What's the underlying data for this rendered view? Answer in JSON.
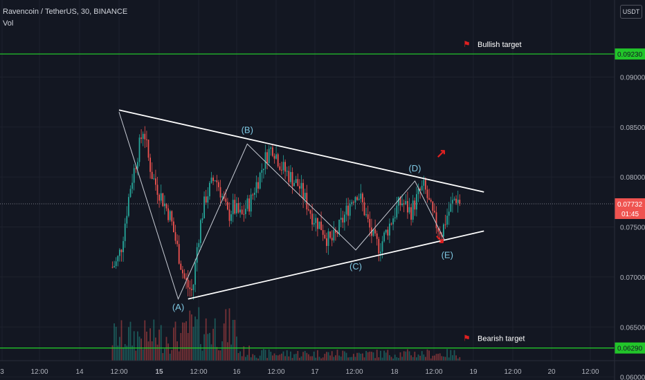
{
  "header": {
    "symbol_line": "Ravencoin / TetherUS, 30, BINANCE",
    "volume_label": "Vol",
    "currency_button": "USDT"
  },
  "colors": {
    "background": "#131722",
    "up": "#26a69a",
    "down": "#ef5350",
    "target_line": "#22c52a",
    "wave_line": "#c9cdd6",
    "triangle_line": "#ffffff",
    "wave_label": "#7ec8e3",
    "arrow": "#e02020",
    "price_tag": "#ef5350"
  },
  "chart_data": {
    "type": "candlestick",
    "symbol": "Ravencoin / TetherUS",
    "interval": "30",
    "exchange": "BINANCE",
    "x_ticks": [
      "3",
      "12:00",
      "14",
      "12:00",
      "15",
      "12:00",
      "16",
      "12:00",
      "17",
      "12:00",
      "18",
      "12:00",
      "19",
      "12:00",
      "20",
      "12:00"
    ],
    "y_ticks": [
      "0.06000",
      "0.06500",
      "0.07000",
      "0.07500",
      "0.08000",
      "0.08500",
      "0.09000"
    ],
    "ylim": [
      0.0597,
      0.0977
    ],
    "last_price": "0.07732",
    "countdown": "01:45",
    "targets": [
      {
        "label": "Bullish target",
        "value": 0.0923,
        "tag": "0.09230"
      },
      {
        "label": "Bearish target",
        "value": 0.0629,
        "tag": "0.06290"
      }
    ],
    "wave_points": [
      {
        "label": "",
        "time": "14 12:00",
        "value": 0.0865
      },
      {
        "label": "(A)",
        "time": "15 06:00",
        "value": 0.0678
      },
      {
        "label": "(B)",
        "time": "16 03:00",
        "value": 0.0833
      },
      {
        "label": "(C)",
        "time": "17 12:00",
        "value": 0.0727
      },
      {
        "label": "(D)",
        "time": "18 06:00",
        "value": 0.0796
      },
      {
        "label": "(E)",
        "time": "18 15:00",
        "value": 0.0737
      }
    ],
    "triangle": {
      "upper": [
        {
          "time": "14 12:00",
          "value": 0.0867
        },
        {
          "time": "19 03:00",
          "value": 0.0785
        }
      ],
      "lower": [
        {
          "time": "15 09:00",
          "value": 0.0678
        },
        {
          "time": "19 03:00",
          "value": 0.0746
        }
      ]
    },
    "price_path": [
      0.071,
      0.0715,
      0.073,
      0.076,
      0.079,
      0.081,
      0.083,
      0.085,
      0.082,
      0.08,
      0.079,
      0.078,
      0.077,
      0.076,
      0.074,
      0.072,
      0.07,
      0.069,
      0.0685,
      0.073,
      0.076,
      0.078,
      0.079,
      0.08,
      0.079,
      0.0775,
      0.076,
      0.077,
      0.0765,
      0.076,
      0.077,
      0.0775,
      0.079,
      0.08,
      0.0815,
      0.0825,
      0.083,
      0.082,
      0.081,
      0.0805,
      0.08,
      0.0795,
      0.079,
      0.078,
      0.077,
      0.076,
      0.0755,
      0.075,
      0.074,
      0.0735,
      0.074,
      0.075,
      0.076,
      0.077,
      0.078,
      0.0785,
      0.0775,
      0.076,
      0.0745,
      0.0735,
      0.073,
      0.074,
      0.075,
      0.076,
      0.077,
      0.0775,
      0.077,
      0.0765,
      0.0775,
      0.0785,
      0.079,
      0.0775,
      0.076,
      0.075,
      0.0745,
      0.076,
      0.077,
      0.078,
      0.0775
    ]
  }
}
